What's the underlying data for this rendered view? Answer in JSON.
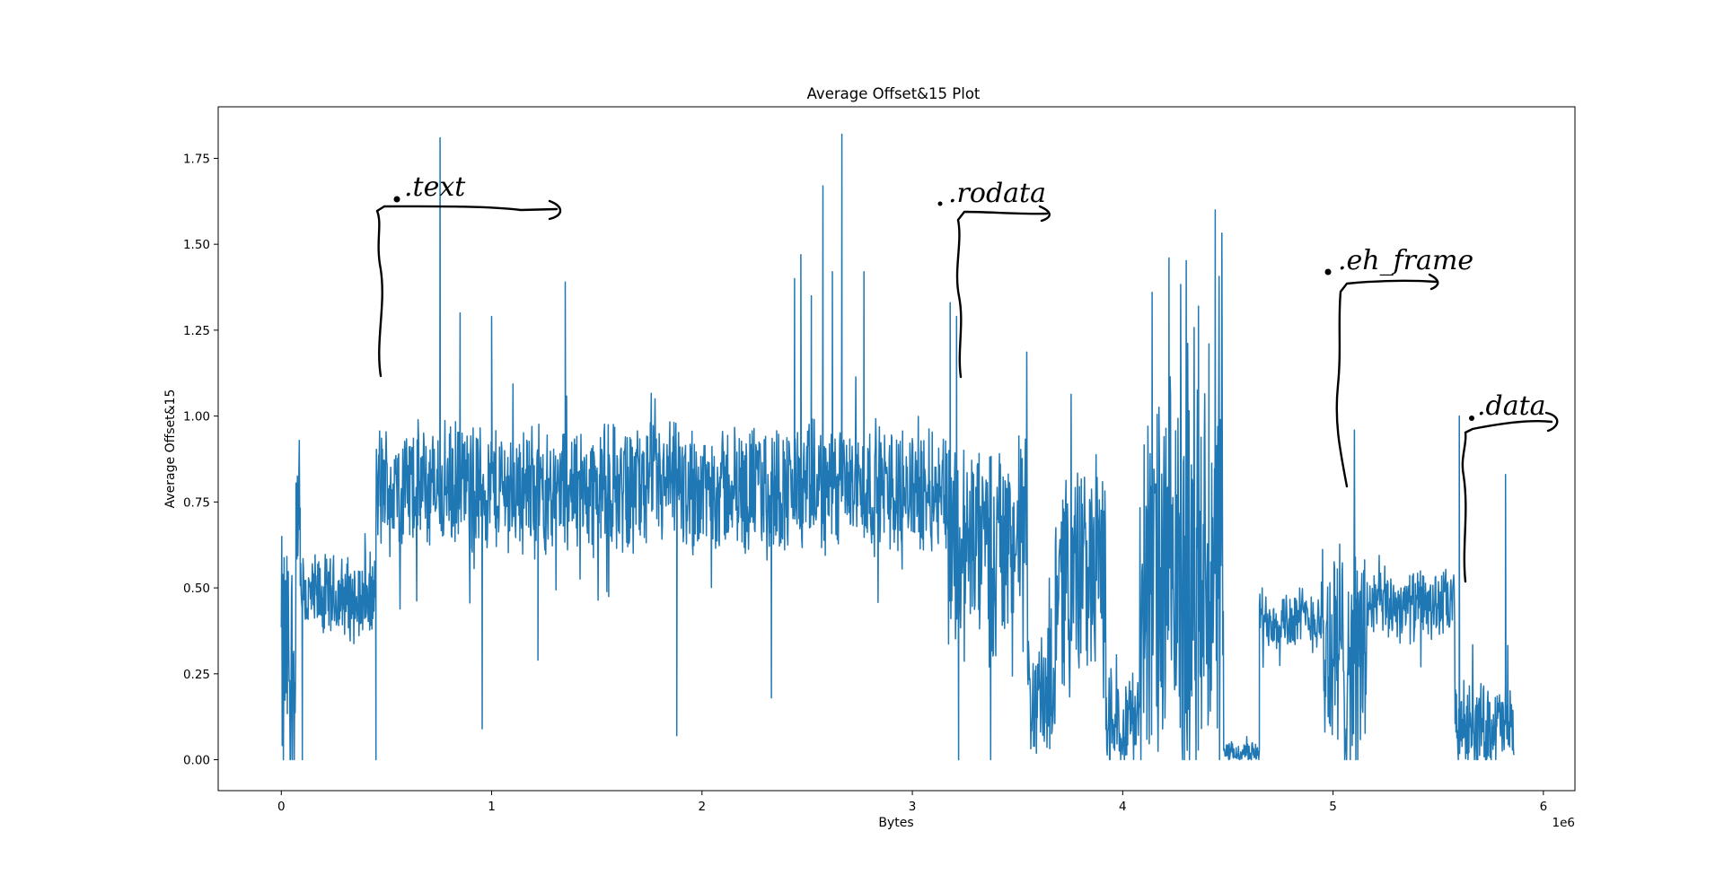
{
  "chart_data": {
    "type": "line",
    "title": "Average Offset&15 Plot",
    "xlabel": "Bytes",
    "ylabel": "Average Offset&15",
    "x_offset_label": "1e6",
    "xlim": [
      -0.3,
      6.15
    ],
    "ylim": [
      -0.09,
      1.9
    ],
    "x_ticks": [
      0,
      1,
      2,
      3,
      4,
      5,
      6
    ],
    "x_tick_labels": [
      "0",
      "1",
      "2",
      "3",
      "4",
      "5",
      "6"
    ],
    "y_ticks": [
      0.0,
      0.25,
      0.5,
      0.75,
      1.0,
      1.25,
      1.5,
      1.75
    ],
    "y_tick_labels": [
      "0.00",
      "0.25",
      "0.50",
      "0.75",
      "1.00",
      "1.25",
      "1.50",
      "1.75"
    ],
    "grid": false,
    "series_color": "#1f77b4",
    "segments": [
      {
        "x0": 0.0,
        "x1": 0.07,
        "mean": 0.3,
        "amp": 0.35
      },
      {
        "x0": 0.07,
        "x1": 0.09,
        "mean": 0.72,
        "amp": 0.22
      },
      {
        "x0": 0.09,
        "x1": 0.45,
        "mean": 0.47,
        "amp": 0.12
      },
      {
        "x0": 0.45,
        "x1": 3.17,
        "mean": 0.79,
        "amp": 0.18
      },
      {
        "x0": 3.17,
        "x1": 3.55,
        "mean": 0.62,
        "amp": 0.32
      },
      {
        "x0": 3.55,
        "x1": 3.68,
        "mean": 0.18,
        "amp": 0.18
      },
      {
        "x0": 3.68,
        "x1": 3.92,
        "mean": 0.55,
        "amp": 0.32
      },
      {
        "x0": 3.92,
        "x1": 4.08,
        "mean": 0.12,
        "amp": 0.14
      },
      {
        "x0": 4.08,
        "x1": 4.48,
        "mean": 0.5,
        "amp": 0.55
      },
      {
        "x0": 4.48,
        "x1": 4.65,
        "mean": 0.02,
        "amp": 0.03
      },
      {
        "x0": 4.65,
        "x1": 4.95,
        "mean": 0.41,
        "amp": 0.09
      },
      {
        "x0": 4.95,
        "x1": 5.16,
        "mean": 0.3,
        "amp": 0.35
      },
      {
        "x0": 5.16,
        "x1": 5.58,
        "mean": 0.45,
        "amp": 0.1
      },
      {
        "x0": 5.58,
        "x1": 5.86,
        "mean": 0.1,
        "amp": 0.12
      }
    ],
    "spikes": [
      {
        "x": 0.755,
        "y": 1.81
      },
      {
        "x": 0.85,
        "y": 1.3
      },
      {
        "x": 1.0,
        "y": 1.29
      },
      {
        "x": 1.35,
        "y": 1.39
      },
      {
        "x": 0.955,
        "y": 0.09
      },
      {
        "x": 0.45,
        "y": 0.0
      },
      {
        "x": 1.22,
        "y": 0.29
      },
      {
        "x": 1.88,
        "y": 0.07
      },
      {
        "x": 2.33,
        "y": 0.18
      },
      {
        "x": 2.44,
        "y": 1.4
      },
      {
        "x": 2.47,
        "y": 1.47
      },
      {
        "x": 2.52,
        "y": 1.35
      },
      {
        "x": 2.575,
        "y": 1.67
      },
      {
        "x": 2.62,
        "y": 1.42
      },
      {
        "x": 2.665,
        "y": 1.82
      },
      {
        "x": 2.77,
        "y": 1.42
      },
      {
        "x": 3.18,
        "y": 1.33
      },
      {
        "x": 3.21,
        "y": 1.29
      },
      {
        "x": 3.22,
        "y": 0.0
      },
      {
        "x": 4.14,
        "y": 1.36
      },
      {
        "x": 4.22,
        "y": 1.46
      },
      {
        "x": 4.36,
        "y": 1.32
      },
      {
        "x": 4.41,
        "y": 1.21
      },
      {
        "x": 4.44,
        "y": 1.6
      },
      {
        "x": 5.6,
        "y": 1.0
      },
      {
        "x": 5.82,
        "y": 0.83
      },
      {
        "x": 0.01,
        "y": 0.0
      },
      {
        "x": 0.1,
        "y": 0.0
      }
    ]
  },
  "annotations": [
    {
      "text": ".text"
    },
    {
      "text": ".rodata"
    },
    {
      "text": ".eh_frame"
    },
    {
      "text": ".data"
    }
  ]
}
